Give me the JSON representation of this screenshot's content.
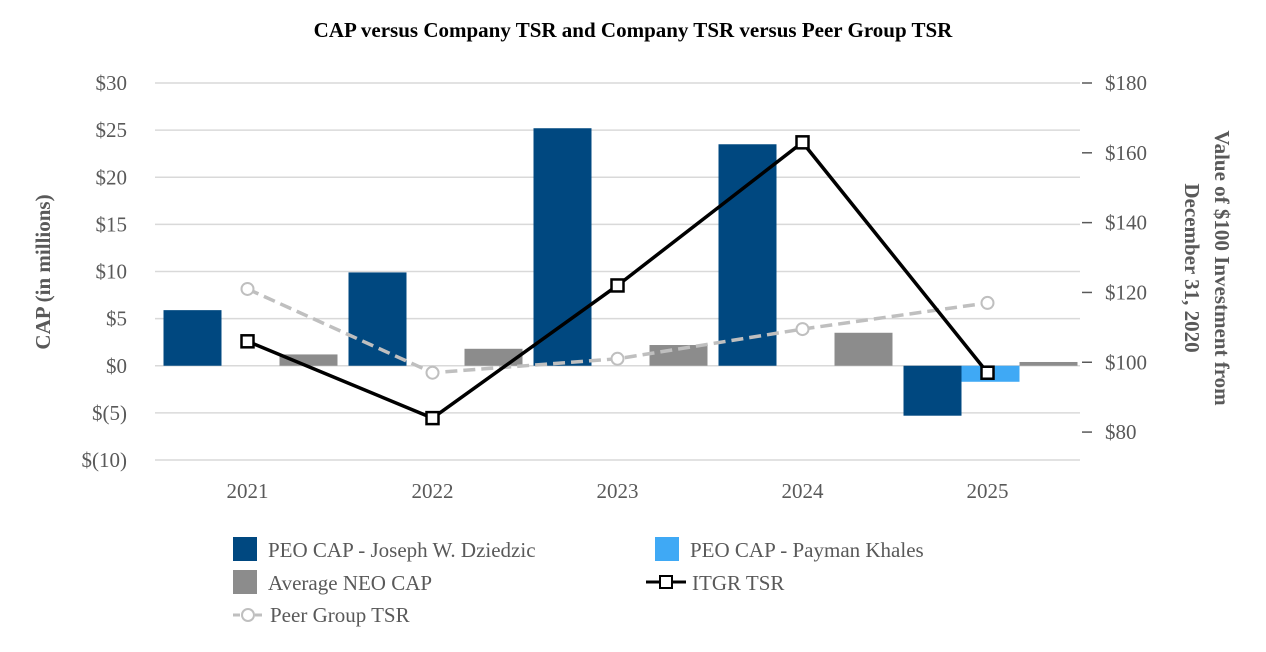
{
  "chart_data": {
    "type": "bar+line",
    "title": "CAP versus Company TSR and Company TSR versus Peer Group TSR",
    "categories": [
      "2021",
      "2022",
      "2023",
      "2024",
      "2025"
    ],
    "left_axis": {
      "label": "CAP (in millions)",
      "ylim": [
        -10,
        30
      ],
      "ticks": [
        30,
        25,
        20,
        15,
        10,
        5,
        0,
        -5,
        -10
      ],
      "tick_labels": [
        "$30",
        "$25",
        "$20",
        "$15",
        "$10",
        "$5",
        "$0",
        "$(5)",
        "$(10)"
      ]
    },
    "right_axis": {
      "label_line1": "Value of $100 Investment from",
      "label_line2": "December 31, 2020",
      "ylim": [
        72,
        180
      ],
      "ticks": [
        180,
        160,
        140,
        120,
        100,
        80
      ],
      "tick_labels": [
        "$180",
        "$160",
        "$140",
        "$120",
        "$100",
        "$80"
      ]
    },
    "bar_series": [
      {
        "name": "PEO CAP - Joseph W. Dziedzic",
        "color": "#004880",
        "values": [
          5.9,
          9.9,
          25.2,
          23.5,
          -5.3
        ]
      },
      {
        "name": "PEO CAP - Payman Khales",
        "color": "#3FA9F5",
        "values": [
          0,
          0,
          0,
          0,
          -1.7
        ]
      },
      {
        "name": "Average NEO CAP",
        "color": "#8C8C8C",
        "values": [
          1.2,
          1.8,
          2.2,
          3.5,
          0.4
        ]
      }
    ],
    "line_series": [
      {
        "name": "ITGR TSR",
        "color": "#000000",
        "style": "solid",
        "marker": "square",
        "values": [
          106,
          84,
          122,
          163,
          97
        ]
      },
      {
        "name": "Peer Group TSR",
        "color": "#BFBFBF",
        "style": "dashed",
        "marker": "circle",
        "values": [
          121,
          97,
          101,
          109.5,
          117
        ]
      }
    ],
    "legend": {
      "placement": "bottom",
      "items": [
        {
          "label": "PEO CAP - Joseph W. Dziedzic",
          "color": "#004880",
          "kind": "bar"
        },
        {
          "label": "PEO CAP - Payman Khales",
          "color": "#3FA9F5",
          "kind": "bar"
        },
        {
          "label": "Average NEO CAP",
          "color": "#8C8C8C",
          "kind": "bar"
        },
        {
          "label": "ITGR TSR",
          "color": "#000000",
          "kind": "line-square"
        },
        {
          "label": "Peer Group TSR",
          "color": "#BFBFBF",
          "kind": "line-circle-dashed"
        }
      ]
    },
    "grid": true
  }
}
